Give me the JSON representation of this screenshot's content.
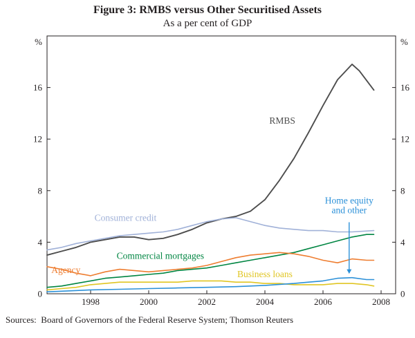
{
  "figure": {
    "title": "Figure 3: RMBS versus Other Securitised Assets",
    "subtitle": "As a per cent of GDP",
    "sources": "Sources:  Board of Governors of the Federal Reserve System; Thomson Reuters"
  },
  "chart_data": {
    "type": "line",
    "title": "Figure 3: RMBS versus Other Securitised Assets",
    "subtitle": "As a per cent of GDP",
    "unit": "%",
    "xlim": [
      1996.5,
      2008.5
    ],
    "ylim": [
      0,
      20
    ],
    "yticks": [
      0,
      4,
      8,
      12,
      16
    ],
    "xticks": [
      1998,
      2000,
      2002,
      2004,
      2006,
      2008
    ],
    "grid": false,
    "legend_position": "inline-labels",
    "frame_color": "#231f20",
    "series": [
      {
        "name": "RMBS",
        "color": "#4d4d4d",
        "width": 1.9,
        "x": [
          1996.5,
          1997,
          1997.5,
          1998,
          1998.5,
          1999,
          1999.5,
          2000,
          2000.5,
          2001,
          2001.5,
          2002,
          2002.5,
          2003,
          2003.5,
          2004,
          2004.5,
          2005,
          2005.5,
          2006,
          2006.5,
          2007,
          2007.25,
          2007.75
        ],
        "y": [
          3.0,
          3.3,
          3.6,
          4.0,
          4.2,
          4.4,
          4.4,
          4.2,
          4.3,
          4.6,
          5.0,
          5.5,
          5.8,
          6.0,
          6.4,
          7.3,
          8.8,
          10.5,
          12.5,
          14.6,
          16.6,
          17.8,
          17.3,
          15.8
        ]
      },
      {
        "name": "Consumer credit",
        "color": "#a0b1d8",
        "width": 1.6,
        "x": [
          1996.5,
          1997,
          1997.5,
          1998,
          1998.5,
          1999,
          1999.5,
          2000,
          2000.5,
          2001,
          2001.5,
          2002,
          2002.5,
          2003,
          2003.5,
          2004,
          2004.5,
          2005,
          2005.5,
          2006,
          2006.5,
          2007,
          2007.75
        ],
        "y": [
          3.4,
          3.6,
          3.9,
          4.1,
          4.3,
          4.5,
          4.6,
          4.7,
          4.8,
          5.0,
          5.3,
          5.6,
          5.8,
          5.9,
          5.6,
          5.3,
          5.1,
          5.0,
          4.9,
          4.9,
          4.8,
          4.8,
          4.9
        ]
      },
      {
        "name": "Commercial mortgages",
        "color": "#008542",
        "width": 1.6,
        "x": [
          1996.5,
          1997,
          1997.5,
          1998,
          1998.5,
          1999,
          1999.5,
          2000,
          2000.5,
          2001,
          2001.5,
          2002,
          2002.5,
          2003,
          2003.5,
          2004,
          2004.5,
          2005,
          2005.5,
          2006,
          2006.5,
          2007,
          2007.5,
          2007.75
        ],
        "y": [
          0.5,
          0.6,
          0.8,
          1.0,
          1.2,
          1.3,
          1.4,
          1.5,
          1.6,
          1.8,
          1.9,
          2.0,
          2.2,
          2.4,
          2.6,
          2.8,
          3.0,
          3.2,
          3.5,
          3.8,
          4.1,
          4.4,
          4.6,
          4.6
        ]
      },
      {
        "name": "Agency",
        "color": "#ee7d30",
        "width": 1.6,
        "x": [
          1996.5,
          1997,
          1997.5,
          1998,
          1998.5,
          1999,
          1999.5,
          2000,
          2000.5,
          2001,
          2001.5,
          2002,
          2002.5,
          2003,
          2003.5,
          2004,
          2004.5,
          2005,
          2005.5,
          2006,
          2006.5,
          2007,
          2007.5,
          2007.75
        ],
        "y": [
          2.1,
          1.9,
          1.6,
          1.4,
          1.7,
          1.9,
          1.8,
          1.7,
          1.8,
          1.9,
          2.0,
          2.2,
          2.5,
          2.8,
          3.0,
          3.1,
          3.2,
          3.1,
          2.9,
          2.6,
          2.4,
          2.7,
          2.6,
          2.6
        ]
      },
      {
        "name": "Business loans",
        "color": "#e0c522",
        "width": 1.6,
        "x": [
          1996.5,
          1997,
          1997.5,
          1998,
          1998.5,
          1999,
          1999.5,
          2000,
          2000.5,
          2001,
          2001.5,
          2002,
          2002.5,
          2003,
          2003.5,
          2004,
          2004.5,
          2005,
          2005.5,
          2006,
          2006.5,
          2007,
          2007.5,
          2007.75
        ],
        "y": [
          0.3,
          0.4,
          0.5,
          0.7,
          0.8,
          0.9,
          0.9,
          0.9,
          0.9,
          0.9,
          1.0,
          1.0,
          1.0,
          0.9,
          0.9,
          0.8,
          0.8,
          0.7,
          0.7,
          0.7,
          0.8,
          0.8,
          0.7,
          0.6
        ]
      },
      {
        "name": "Home equity and other",
        "color": "#2b90d8",
        "width": 1.6,
        "x": [
          1996.5,
          1997,
          1998,
          1999,
          2000,
          2001,
          2002,
          2003,
          2004,
          2005,
          2005.5,
          2006,
          2006.5,
          2007,
          2007.5,
          2007.75
        ],
        "y": [
          0.15,
          0.2,
          0.3,
          0.35,
          0.4,
          0.45,
          0.5,
          0.55,
          0.65,
          0.8,
          0.9,
          1.0,
          1.2,
          1.25,
          1.1,
          1.1
        ]
      }
    ],
    "annotations": [
      {
        "text": "RMBS",
        "x": 2004.6,
        "y": 13.2,
        "color": "#4d4d4d"
      },
      {
        "text": "Consumer credit",
        "x": 1999.2,
        "y": 5.65,
        "color": "#a0b1d8"
      },
      {
        "text": "Commercial mortgages",
        "x": 2000.4,
        "y": 2.7,
        "color": "#008542"
      },
      {
        "text": "Agency",
        "x": 1997.15,
        "y": 1.6,
        "color": "#ee7d30"
      },
      {
        "text": "Business loans",
        "x": 2004.0,
        "y": 1.3,
        "color": "#e0c522"
      },
      {
        "text": "Home equity\nand other",
        "x": 2006.9,
        "y": 7.0,
        "color": "#2b90d8",
        "arrow_from": [
          2006.9,
          5.55
        ],
        "arrow_to": [
          2006.9,
          1.55
        ]
      }
    ]
  }
}
